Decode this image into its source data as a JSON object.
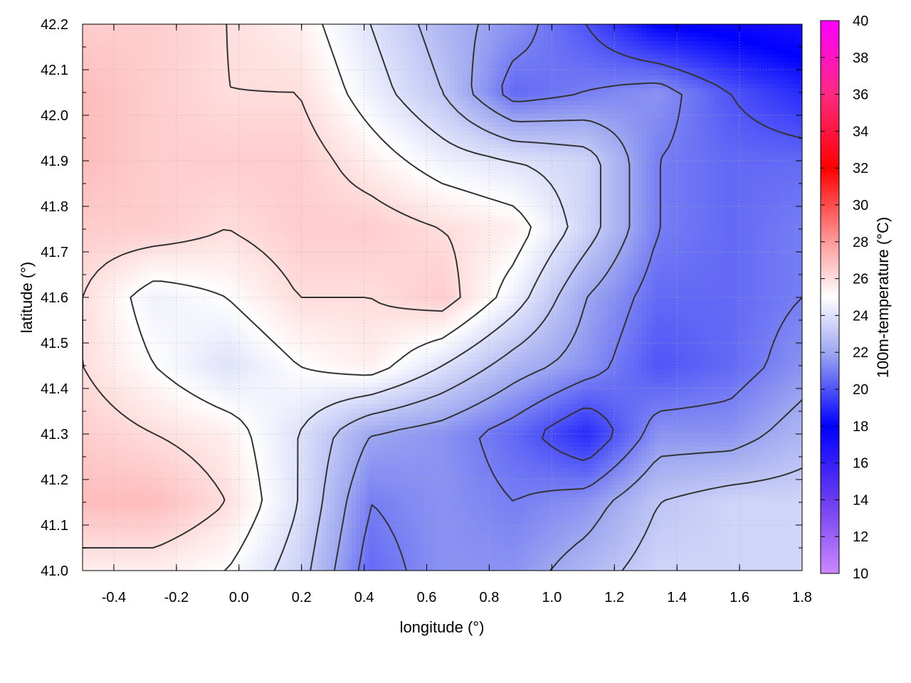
{
  "chart_data": {
    "type": "heatmap",
    "title": "",
    "xlabel": "longitude (°)",
    "ylabel": "latitude (°)",
    "colorbar_label": "100m-temperature (°C)",
    "xlim": [
      -0.5,
      1.8
    ],
    "ylim": [
      41.0,
      42.2
    ],
    "x_ticks": [
      -0.4,
      -0.2,
      0.0,
      0.2,
      0.4,
      0.6,
      0.8,
      1.0,
      1.2,
      1.4,
      1.6,
      1.8
    ],
    "x_tick_labels": [
      "-0.4",
      "-0.2",
      "0.0",
      "0.2",
      "0.4",
      "0.6",
      "0.8",
      "1.0",
      "1.2",
      "1.4",
      "1.6",
      "1.8"
    ],
    "y_ticks": [
      41.0,
      41.1,
      41.2,
      41.3,
      41.4,
      41.5,
      41.6,
      41.7,
      41.8,
      41.9,
      42.0,
      42.1,
      42.2
    ],
    "y_tick_labels": [
      "41.0",
      "41.1",
      "41.2",
      "41.3",
      "41.4",
      "41.5",
      "41.6",
      "41.7",
      "41.8",
      "41.9",
      "42.0",
      "42.1",
      "42.2"
    ],
    "colorbar_range": [
      10,
      40
    ],
    "colorbar_ticks": [
      10,
      12,
      14,
      16,
      18,
      20,
      22,
      24,
      26,
      28,
      30,
      32,
      34,
      36,
      38,
      40
    ],
    "colorbar_tick_labels": [
      "10",
      "12",
      "14",
      "16",
      "18",
      "20",
      "22",
      "24",
      "26",
      "28",
      "30",
      "32",
      "34",
      "36",
      "38",
      "40"
    ],
    "colormap": [
      {
        "v": 10,
        "color": "#cc88ff"
      },
      {
        "v": 14,
        "color": "#6a3cf0"
      },
      {
        "v": 18,
        "color": "#0000ff"
      },
      {
        "v": 22,
        "color": "#9ea8f0"
      },
      {
        "v": 25,
        "color": "#ffffff"
      },
      {
        "v": 28,
        "color": "#ff9a9a"
      },
      {
        "v": 32,
        "color": "#ff0000"
      },
      {
        "v": 36,
        "color": "#ff2a80"
      },
      {
        "v": 40,
        "color": "#ff00ff"
      }
    ],
    "grid": true,
    "contour_color": "#333333",
    "field": {
      "lon": [
        -0.5,
        -0.27,
        -0.04,
        0.19,
        0.42,
        0.65,
        0.88,
        1.11,
        1.34,
        1.57,
        1.8
      ],
      "lat": [
        42.2,
        42.05,
        41.9,
        41.75,
        41.6,
        41.45,
        41.3,
        41.15,
        41.0
      ],
      "values": [
        [
          26.5,
          26.5,
          26.0,
          25.5,
          24.0,
          22.5,
          21.5,
          20.0,
          18.0,
          17.5,
          17.0
        ],
        [
          27.0,
          26.5,
          26.0,
          26.0,
          24.5,
          23.0,
          20.5,
          21.0,
          21.5,
          20.0,
          19.0
        ],
        [
          27.0,
          26.5,
          26.5,
          26.5,
          25.5,
          24.5,
          24.0,
          23.5,
          21.0,
          20.5,
          20.5
        ],
        [
          26.5,
          26.5,
          26.0,
          26.5,
          26.5,
          26.0,
          25.5,
          23.5,
          21.0,
          20.5,
          21.0
        ],
        [
          26.0,
          24.5,
          25.0,
          26.0,
          26.0,
          26.5,
          24.5,
          22.0,
          20.5,
          20.5,
          21.0
        ],
        [
          26.0,
          25.0,
          24.0,
          25.0,
          25.5,
          24.0,
          22.5,
          21.5,
          20.0,
          20.5,
          21.5
        ],
        [
          26.5,
          26.0,
          25.5,
          24.0,
          22.0,
          21.5,
          20.5,
          19.0,
          21.5,
          21.5,
          22.5
        ],
        [
          27.0,
          27.0,
          26.0,
          24.0,
          21.0,
          21.5,
          21.0,
          21.5,
          23.0,
          23.5,
          23.5
        ],
        [
          25.5,
          25.5,
          25.0,
          23.5,
          20.5,
          21.5,
          21.5,
          22.5,
          23.5,
          23.5,
          23.5
        ]
      ]
    },
    "contour_levels": [
      20,
      21,
      22,
      23,
      24,
      25,
      26
    ]
  }
}
